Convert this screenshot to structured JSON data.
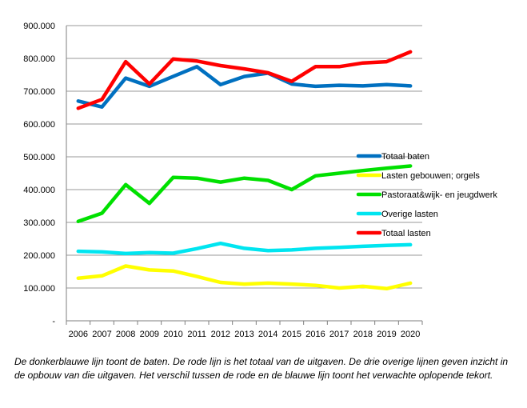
{
  "chart_data": {
    "type": "line",
    "title": "",
    "xlabel": "",
    "ylabel": "",
    "x": [
      "2006",
      "2007",
      "2008",
      "2009",
      "2010",
      "2011",
      "2012",
      "2013",
      "2014",
      "2015",
      "2016",
      "2017",
      "2018",
      "2019",
      "2020"
    ],
    "ylim": [
      0,
      900000
    ],
    "yticks": [
      0,
      100000,
      200000,
      300000,
      400000,
      500000,
      600000,
      700000,
      800000,
      900000
    ],
    "ytick_labels": [
      "-",
      "100.000",
      "200.000",
      "300.000",
      "400.000",
      "500.000",
      "600.000",
      "700.000",
      "800.000",
      "900.000"
    ],
    "grid": "horizontal",
    "legend_position": "right",
    "series": [
      {
        "name": "Totaal baten",
        "color": "#0070C0",
        "values": [
          670000,
          652000,
          740000,
          715000,
          745000,
          775000,
          720000,
          745000,
          755000,
          722000,
          715000,
          718000,
          716000,
          720000,
          716000
        ]
      },
      {
        "name": "Lasten gebouwen; orgels",
        "color": "#FFFF00",
        "values": [
          130000,
          137000,
          167000,
          155000,
          152000,
          135000,
          117000,
          112000,
          115000,
          112000,
          108000,
          100000,
          105000,
          98000,
          115000
        ]
      },
      {
        "name": "Pastoraat&wijk- en jeugdwerk",
        "color": "#00E000",
        "values": [
          303000,
          328000,
          415000,
          358000,
          437000,
          435000,
          423000,
          435000,
          428000,
          400000,
          442000,
          450000,
          458000,
          465000,
          472000
        ]
      },
      {
        "name": "Overige lasten",
        "color": "#00E5F0",
        "values": [
          212000,
          210000,
          205000,
          208000,
          206000,
          220000,
          236000,
          221000,
          214000,
          216000,
          221000,
          224000,
          227000,
          230000,
          232000
        ]
      },
      {
        "name": "Totaal lasten",
        "color": "#FF0000",
        "values": [
          648000,
          675000,
          790000,
          722000,
          798000,
          792000,
          778000,
          768000,
          756000,
          730000,
          775000,
          775000,
          786000,
          790000,
          820000
        ]
      }
    ]
  },
  "caption": "De donkerblauwe lijn toont de baten. De rode lijn is het totaal van de uitgaven. De drie overige lijnen geven inzicht in de opbouw van die uitgaven. Het verschil tussen de rode en de blauwe lijn toont het verwachte oplopende tekort."
}
